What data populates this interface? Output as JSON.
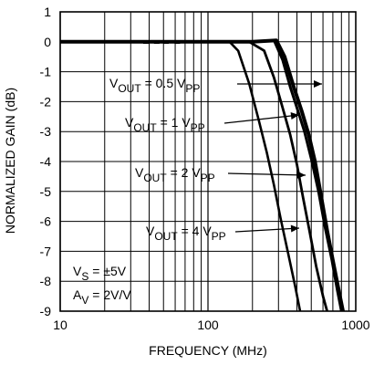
{
  "chart_data": {
    "type": "line",
    "xlabel": "FREQUENCY (MHz)",
    "ylabel": "NORMALIZED GAIN (dB)",
    "x_scale": "log",
    "xlim": [
      10,
      1000
    ],
    "ylim": [
      -9,
      1
    ],
    "x_ticks": [
      "10",
      "100",
      "1000"
    ],
    "y_ticks": [
      "1",
      "0",
      "-1",
      "-2",
      "-3",
      "-4",
      "-5",
      "-6",
      "-7",
      "-8",
      "-9"
    ],
    "grid": true,
    "series": [
      {
        "name": "VOUT = 0.5 VPP",
        "points": [
          [
            10,
            0
          ],
          [
            100,
            0
          ],
          [
            200,
            0
          ],
          [
            290,
            0.05
          ],
          [
            330,
            -0.5
          ],
          [
            380,
            -1.5
          ],
          [
            430,
            -2.3
          ],
          [
            480,
            -3.1
          ],
          [
            530,
            -4.0
          ],
          [
            580,
            -5.1
          ],
          [
            640,
            -6.3
          ],
          [
            700,
            -7.3
          ],
          [
            760,
            -8.2
          ],
          [
            820,
            -9.0
          ]
        ]
      },
      {
        "name": "VOUT = 1 VPP",
        "points": [
          [
            10,
            0
          ],
          [
            100,
            0
          ],
          [
            200,
            0
          ],
          [
            280,
            0.05
          ],
          [
            320,
            -0.6
          ],
          [
            360,
            -1.5
          ],
          [
            400,
            -2.2
          ],
          [
            450,
            -3.0
          ],
          [
            500,
            -3.9
          ],
          [
            560,
            -5.0
          ],
          [
            620,
            -6.2
          ],
          [
            690,
            -7.3
          ],
          [
            750,
            -8.3
          ],
          [
            800,
            -9.0
          ]
        ]
      },
      {
        "name": "VOUT = 2 VPP",
        "points": [
          [
            10,
            0
          ],
          [
            100,
            0
          ],
          [
            190,
            0
          ],
          [
            240,
            -0.3
          ],
          [
            280,
            -1.2
          ],
          [
            320,
            -2.2
          ],
          [
            360,
            -3.1
          ],
          [
            400,
            -4.1
          ],
          [
            440,
            -5.2
          ],
          [
            490,
            -6.4
          ],
          [
            540,
            -7.5
          ],
          [
            600,
            -8.5
          ],
          [
            640,
            -9.0
          ]
        ]
      },
      {
        "name": "VOUT = 4 VPP",
        "points": [
          [
            10,
            0
          ],
          [
            100,
            0
          ],
          [
            140,
            0
          ],
          [
            160,
            -0.3
          ],
          [
            190,
            -1.4
          ],
          [
            220,
            -2.6
          ],
          [
            250,
            -3.7
          ],
          [
            280,
            -4.8
          ],
          [
            310,
            -5.9
          ],
          [
            350,
            -7.1
          ],
          [
            390,
            -8.2
          ],
          [
            420,
            -9.0
          ]
        ]
      }
    ],
    "annotations": [
      {
        "label": "V",
        "sub": "OUT",
        "mid": " = 0.5 V",
        "sub2": "PP"
      },
      {
        "label": "V",
        "sub": "OUT",
        "mid": " = 1 V",
        "sub2": "PP"
      },
      {
        "label": "V",
        "sub": "OUT",
        "mid": " = 2 V",
        "sub2": "PP"
      },
      {
        "label": "V",
        "sub": "OUT",
        "mid": " = 4 V",
        "sub2": "PP"
      }
    ],
    "conditions": [
      {
        "label": "V",
        "sub": "S",
        "rest": " = ±5V"
      },
      {
        "label": "A",
        "sub": "V",
        "rest": " = 2V/V"
      }
    ]
  }
}
